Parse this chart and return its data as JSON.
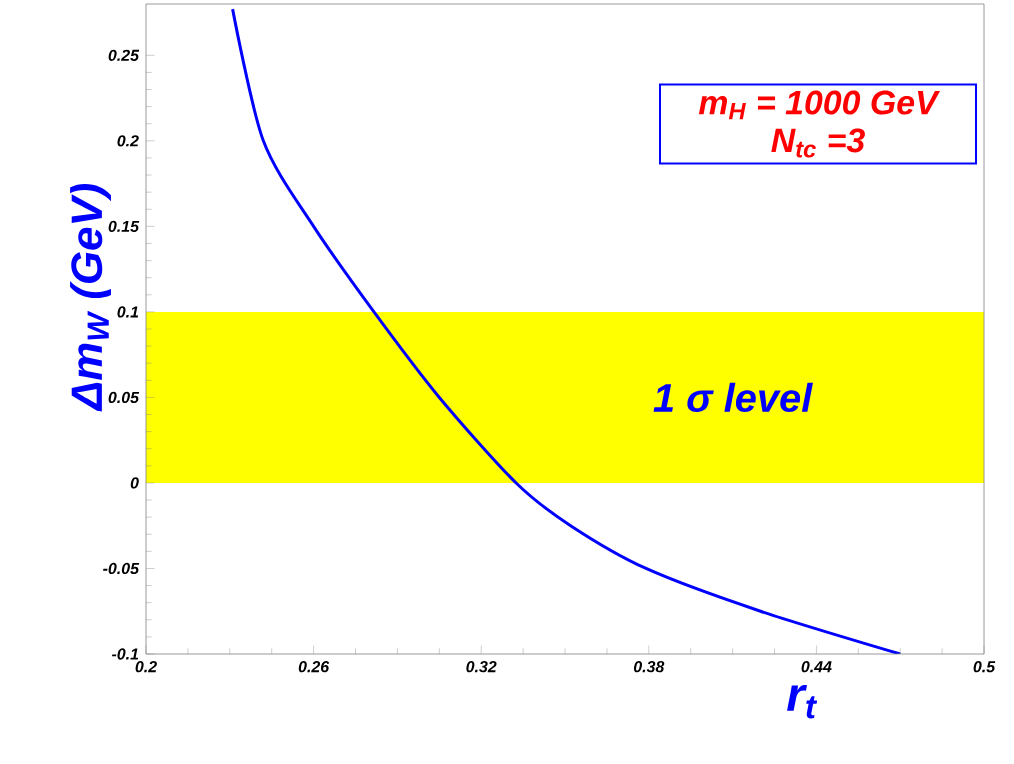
{
  "chart_data": {
    "type": "line",
    "xlabel": "r$_{t}$",
    "ylabel": "Δm$_{W}$ (GeV)",
    "x": [
      0.231,
      0.242,
      0.26,
      0.2816,
      0.305,
      0.3325,
      0.352,
      0.379,
      0.42,
      0.47
    ],
    "series": [
      {
        "color": "#0000ff",
        "values": [
          0.277,
          0.2,
          0.15,
          0.1,
          0.05,
          0,
          -0.025,
          -0.05,
          -0.075,
          -0.1
        ]
      }
    ],
    "xlim": [
      0.2,
      0.5
    ],
    "ylim": [
      -0.1,
      0.28
    ],
    "xticks": [
      0.2,
      0.26,
      0.32,
      0.38,
      0.44,
      0.5
    ],
    "yticks": [
      -0.1,
      -0.05,
      0,
      0.05,
      0.1,
      0.15,
      0.2,
      0.25
    ],
    "bands": [
      {
        "axis": "y",
        "from": 0,
        "to": 0.1,
        "label": "1 σ level",
        "color": "#ffff00"
      }
    ],
    "annotations": [
      "m$_{H}$ = 1000 GeV",
      "N$_{tc}$ =3"
    ],
    "grid": false,
    "marker": "none",
    "line_style": "solid"
  }
}
